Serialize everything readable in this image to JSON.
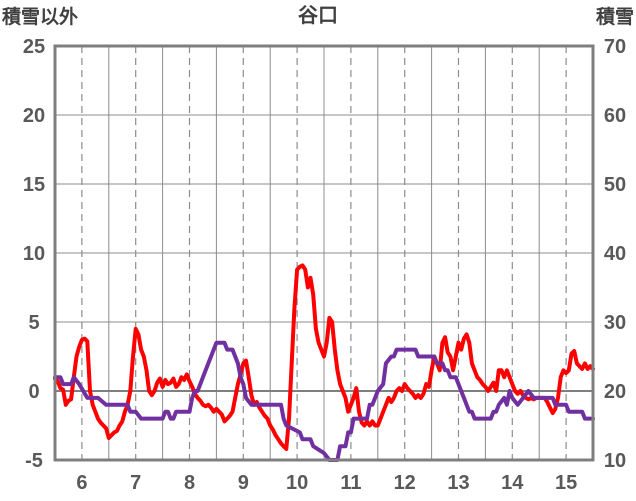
{
  "chart_data": {
    "type": "line",
    "title": "谷口",
    "y_left_label": "積雪以外",
    "y_right_label": "積雪",
    "y_left_range": [
      -5,
      25
    ],
    "y_right_range": [
      10,
      70
    ],
    "y_left_ticks": [
      "-5",
      "0",
      "5",
      "10",
      "15",
      "20",
      "25"
    ],
    "y_right_ticks": [
      "10",
      "20",
      "30",
      "40",
      "50",
      "60",
      "70"
    ],
    "x_range": [
      5.5,
      15.5
    ],
    "x_ticks": [
      "6",
      "7",
      "8",
      "9",
      "10",
      "11",
      "12",
      "13",
      "14",
      "15"
    ],
    "grid": true,
    "series": [
      {
        "axis": "left",
        "color": "#ff0000",
        "points": [
          [
            5.5,
            0.9
          ],
          [
            5.55,
            0.7
          ],
          [
            5.6,
            0.2
          ],
          [
            5.65,
            0.1
          ],
          [
            5.7,
            -1.0
          ],
          [
            5.75,
            -0.7
          ],
          [
            5.8,
            -0.6
          ],
          [
            5.85,
            1.0
          ],
          [
            5.9,
            2.5
          ],
          [
            5.95,
            3.2
          ],
          [
            6.0,
            3.7
          ],
          [
            6.05,
            3.8
          ],
          [
            6.1,
            3.6
          ],
          [
            6.15,
            0.0
          ],
          [
            6.2,
            -1.0
          ],
          [
            6.25,
            -1.5
          ],
          [
            6.3,
            -2.0
          ],
          [
            6.35,
            -2.3
          ],
          [
            6.4,
            -2.5
          ],
          [
            6.45,
            -2.7
          ],
          [
            6.5,
            -3.4
          ],
          [
            6.55,
            -3.2
          ],
          [
            6.6,
            -3.0
          ],
          [
            6.65,
            -2.9
          ],
          [
            6.7,
            -2.5
          ],
          [
            6.75,
            -2.2
          ],
          [
            6.8,
            -1.5
          ],
          [
            6.85,
            -1.0
          ],
          [
            6.9,
            0.0
          ],
          [
            6.95,
            2.5
          ],
          [
            7.0,
            4.5
          ],
          [
            7.05,
            4.1
          ],
          [
            7.1,
            3.0
          ],
          [
            7.15,
            2.5
          ],
          [
            7.2,
            1.5
          ],
          [
            7.25,
            0.0
          ],
          [
            7.3,
            -0.3
          ],
          [
            7.35,
            0.0
          ],
          [
            7.4,
            0.6
          ],
          [
            7.45,
            0.9
          ],
          [
            7.5,
            0.3
          ],
          [
            7.55,
            0.8
          ],
          [
            7.6,
            0.5
          ],
          [
            7.65,
            0.6
          ],
          [
            7.7,
            0.9
          ],
          [
            7.75,
            0.3
          ],
          [
            7.8,
            0.5
          ],
          [
            7.85,
            1.0
          ],
          [
            7.9,
            0.8
          ],
          [
            7.95,
            1.2
          ],
          [
            8.0,
            0.7
          ],
          [
            8.05,
            0.3
          ],
          [
            8.1,
            -0.2
          ],
          [
            8.15,
            -0.5
          ],
          [
            8.2,
            -0.7
          ],
          [
            8.25,
            -1.0
          ],
          [
            8.3,
            -1.1
          ],
          [
            8.35,
            -1.0
          ],
          [
            8.4,
            -1.2
          ],
          [
            8.45,
            -1.5
          ],
          [
            8.5,
            -1.3
          ],
          [
            8.55,
            -1.5
          ],
          [
            8.6,
            -1.7
          ],
          [
            8.65,
            -2.2
          ],
          [
            8.7,
            -2.0
          ],
          [
            8.75,
            -1.8
          ],
          [
            8.8,
            -1.5
          ],
          [
            8.85,
            -0.5
          ],
          [
            8.9,
            0.5
          ],
          [
            8.95,
            1.2
          ],
          [
            9.0,
            2.0
          ],
          [
            9.05,
            2.2
          ],
          [
            9.1,
            1.0
          ],
          [
            9.15,
            -0.3
          ],
          [
            9.2,
            -1.0
          ],
          [
            9.25,
            -0.8
          ],
          [
            9.3,
            -1.2
          ],
          [
            9.35,
            -1.5
          ],
          [
            9.4,
            -1.8
          ],
          [
            9.45,
            -2.0
          ],
          [
            9.5,
            -2.5
          ],
          [
            9.55,
            -2.8
          ],
          [
            9.6,
            -3.2
          ],
          [
            9.65,
            -3.5
          ],
          [
            9.7,
            -3.8
          ],
          [
            9.75,
            -4.0
          ],
          [
            9.8,
            -4.2
          ],
          [
            9.85,
            -2.0
          ],
          [
            9.9,
            2.0
          ],
          [
            9.95,
            6.0
          ],
          [
            10.0,
            8.8
          ],
          [
            10.05,
            9.0
          ],
          [
            10.1,
            9.1
          ],
          [
            10.15,
            8.8
          ],
          [
            10.2,
            7.5
          ],
          [
            10.25,
            8.2
          ],
          [
            10.3,
            7.0
          ],
          [
            10.35,
            4.5
          ],
          [
            10.4,
            3.5
          ],
          [
            10.45,
            3.0
          ],
          [
            10.5,
            2.5
          ],
          [
            10.55,
            3.5
          ],
          [
            10.6,
            5.3
          ],
          [
            10.65,
            5.0
          ],
          [
            10.7,
            3.0
          ],
          [
            10.75,
            1.5
          ],
          [
            10.8,
            0.5
          ],
          [
            10.85,
            0.0
          ],
          [
            10.9,
            -0.5
          ],
          [
            10.95,
            -1.5
          ],
          [
            11.0,
            -1.0
          ],
          [
            11.05,
            -0.5
          ],
          [
            11.1,
            0.2
          ],
          [
            11.15,
            -1.5
          ],
          [
            11.2,
            -2.3
          ],
          [
            11.25,
            -2.5
          ],
          [
            11.3,
            -2.2
          ],
          [
            11.35,
            -2.5
          ],
          [
            11.4,
            -2.2
          ],
          [
            11.45,
            -2.5
          ],
          [
            11.5,
            -2.5
          ],
          [
            11.55,
            -2.0
          ],
          [
            11.6,
            -1.5
          ],
          [
            11.65,
            -1.0
          ],
          [
            11.7,
            -0.5
          ],
          [
            11.75,
            -0.8
          ],
          [
            11.8,
            -0.5
          ],
          [
            11.85,
            0.0
          ],
          [
            11.9,
            0.2
          ],
          [
            11.95,
            0.0
          ],
          [
            12.0,
            0.5
          ],
          [
            12.05,
            0.2
          ],
          [
            12.1,
            0.0
          ],
          [
            12.15,
            -0.2
          ],
          [
            12.2,
            -0.5
          ],
          [
            12.25,
            -0.3
          ],
          [
            12.3,
            -0.5
          ],
          [
            12.35,
            -0.2
          ],
          [
            12.4,
            0.5
          ],
          [
            12.45,
            0.3
          ],
          [
            12.5,
            1.5
          ],
          [
            12.55,
            2.5
          ],
          [
            12.6,
            2.0
          ],
          [
            12.65,
            1.5
          ],
          [
            12.7,
            3.5
          ],
          [
            12.75,
            3.9
          ],
          [
            12.8,
            2.8
          ],
          [
            12.85,
            2.5
          ],
          [
            12.9,
            1.5
          ],
          [
            12.95,
            2.5
          ],
          [
            13.0,
            3.5
          ],
          [
            13.05,
            3.0
          ],
          [
            13.1,
            3.8
          ],
          [
            13.15,
            4.1
          ],
          [
            13.2,
            3.5
          ],
          [
            13.25,
            2.0
          ],
          [
            13.3,
            1.5
          ],
          [
            13.35,
            1.0
          ],
          [
            13.4,
            0.8
          ],
          [
            13.45,
            0.5
          ],
          [
            13.5,
            0.3
          ],
          [
            13.55,
            0.0
          ],
          [
            13.6,
            0.3
          ],
          [
            13.65,
            0.6
          ],
          [
            13.7,
            0.0
          ],
          [
            13.75,
            1.5
          ],
          [
            13.8,
            1.5
          ],
          [
            13.85,
            1.0
          ],
          [
            13.9,
            1.5
          ],
          [
            13.95,
            1.0
          ],
          [
            14.0,
            0.5
          ],
          [
            14.05,
            0.0
          ],
          [
            14.1,
            -0.2
          ],
          [
            14.15,
            0.0
          ],
          [
            14.2,
            -0.3
          ],
          [
            14.25,
            -0.5
          ],
          [
            14.3,
            -0.6
          ],
          [
            14.35,
            -0.5
          ],
          [
            14.4,
            -0.6
          ],
          [
            14.45,
            -0.5
          ],
          [
            14.5,
            -0.5
          ],
          [
            14.55,
            -0.5
          ],
          [
            14.6,
            -0.5
          ],
          [
            14.65,
            -0.8
          ],
          [
            14.7,
            -1.2
          ],
          [
            14.75,
            -1.6
          ],
          [
            14.8,
            -1.3
          ],
          [
            14.85,
            -0.5
          ],
          [
            14.9,
            1.0
          ],
          [
            14.95,
            1.5
          ],
          [
            15.0,
            1.3
          ],
          [
            15.05,
            1.5
          ],
          [
            15.1,
            2.7
          ],
          [
            15.15,
            2.9
          ],
          [
            15.2,
            2.0
          ],
          [
            15.25,
            1.8
          ],
          [
            15.3,
            1.6
          ],
          [
            15.35,
            2.0
          ],
          [
            15.4,
            1.6
          ],
          [
            15.45,
            1.8
          ],
          [
            15.5,
            1.6
          ]
        ]
      },
      {
        "axis": "right",
        "color": "#7030a0",
        "points": [
          [
            5.5,
            22
          ],
          [
            5.6,
            22
          ],
          [
            5.65,
            21
          ],
          [
            5.8,
            21
          ],
          [
            5.85,
            22
          ],
          [
            5.95,
            21
          ],
          [
            6.1,
            19
          ],
          [
            6.2,
            19
          ],
          [
            6.3,
            19
          ],
          [
            6.45,
            18
          ],
          [
            6.85,
            18
          ],
          [
            6.9,
            17
          ],
          [
            7.0,
            17
          ],
          [
            7.1,
            16
          ],
          [
            7.5,
            16
          ],
          [
            7.55,
            17
          ],
          [
            7.6,
            17
          ],
          [
            7.65,
            16
          ],
          [
            7.7,
            16
          ],
          [
            7.75,
            17
          ],
          [
            8.0,
            17
          ],
          [
            8.05,
            19
          ],
          [
            8.1,
            20
          ],
          [
            8.15,
            20
          ],
          [
            8.2,
            21
          ],
          [
            8.3,
            23
          ],
          [
            8.35,
            24
          ],
          [
            8.4,
            25
          ],
          [
            8.45,
            26
          ],
          [
            8.5,
            27
          ],
          [
            8.65,
            27
          ],
          [
            8.7,
            26
          ],
          [
            8.8,
            26
          ],
          [
            8.85,
            25
          ],
          [
            8.9,
            24
          ],
          [
            8.95,
            22
          ],
          [
            9.0,
            21
          ],
          [
            9.05,
            19
          ],
          [
            9.15,
            18
          ],
          [
            9.2,
            18
          ],
          [
            9.7,
            18
          ],
          [
            9.75,
            16
          ],
          [
            9.8,
            15
          ],
          [
            10.05,
            14
          ],
          [
            10.1,
            13
          ],
          [
            10.25,
            13
          ],
          [
            10.3,
            12
          ],
          [
            10.5,
            11
          ],
          [
            10.6,
            10
          ],
          [
            10.75,
            10
          ],
          [
            10.8,
            12
          ],
          [
            10.9,
            12
          ],
          [
            10.95,
            14
          ],
          [
            11.0,
            14
          ],
          [
            11.05,
            16
          ],
          [
            11.3,
            16
          ],
          [
            11.35,
            18
          ],
          [
            11.4,
            18
          ],
          [
            11.45,
            19
          ],
          [
            11.5,
            20
          ],
          [
            11.6,
            21
          ],
          [
            11.65,
            24
          ],
          [
            11.75,
            25
          ],
          [
            11.8,
            25
          ],
          [
            11.85,
            26
          ],
          [
            11.95,
            26
          ],
          [
            12.0,
            26
          ],
          [
            12.05,
            26
          ],
          [
            12.1,
            26
          ],
          [
            12.2,
            26
          ],
          [
            12.25,
            25
          ],
          [
            12.55,
            25
          ],
          [
            12.6,
            24
          ],
          [
            12.7,
            24
          ],
          [
            12.75,
            23
          ],
          [
            12.8,
            23
          ],
          [
            12.85,
            22
          ],
          [
            12.95,
            22
          ],
          [
            13.0,
            21
          ],
          [
            13.05,
            20
          ],
          [
            13.1,
            19
          ],
          [
            13.15,
            18
          ],
          [
            13.2,
            17
          ],
          [
            13.25,
            17
          ],
          [
            13.3,
            16
          ],
          [
            13.6,
            16
          ],
          [
            13.65,
            17
          ],
          [
            13.7,
            17
          ],
          [
            13.75,
            18
          ],
          [
            13.85,
            19
          ],
          [
            13.9,
            18
          ],
          [
            13.95,
            20
          ],
          [
            14.0,
            19
          ],
          [
            14.1,
            18
          ],
          [
            14.2,
            19
          ],
          [
            14.3,
            20
          ],
          [
            14.4,
            19
          ],
          [
            14.75,
            19
          ],
          [
            14.8,
            18
          ],
          [
            14.95,
            18
          ],
          [
            15.0,
            18
          ],
          [
            15.05,
            17
          ],
          [
            15.3,
            17
          ],
          [
            15.35,
            16
          ],
          [
            15.5,
            16
          ]
        ]
      }
    ]
  }
}
